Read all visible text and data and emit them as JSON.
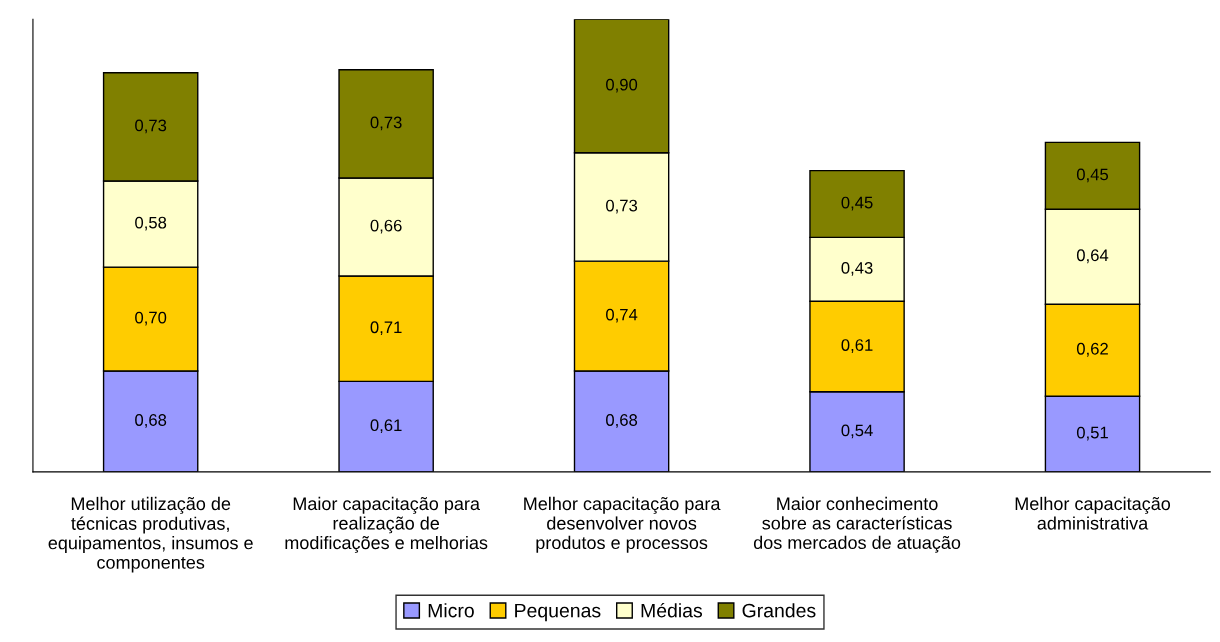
{
  "chart_data": {
    "type": "bar",
    "stacked": true,
    "categories": [
      "Melhor utilização de\ntécnicas produtivas,\nequipamentos, insumos e\ncomponentes",
      "Maior capacitação para\nrealização de\nmodificações e melhorias",
      "Melhor capacitação para\ndesenvolver novos\nprodutos e processos",
      "Maior conhecimento\nsobre as características\ndos mercados de atuação",
      "Melhor capacitação\nadministrativa"
    ],
    "series": [
      {
        "name": "Micro",
        "color": "#9999ff",
        "values": [
          0.68,
          0.61,
          0.68,
          0.54,
          0.51
        ],
        "value_labels": [
          "0,68",
          "0,61",
          "0,68",
          "0,54",
          "0,51"
        ]
      },
      {
        "name": "Pequenas",
        "color": "#ffcc00",
        "values": [
          0.7,
          0.71,
          0.74,
          0.61,
          0.62
        ],
        "value_labels": [
          "0,70",
          "0,71",
          "0,74",
          "0,61",
          "0,62"
        ]
      },
      {
        "name": "Médias",
        "color": "#ffffcc",
        "values": [
          0.58,
          0.66,
          0.73,
          0.43,
          0.64
        ],
        "value_labels": [
          "0,58",
          "0,66",
          "0,73",
          "0,43",
          "0,64"
        ]
      },
      {
        "name": "Grandes",
        "color": "#808000",
        "values": [
          0.73,
          0.73,
          0.9,
          0.45,
          0.45
        ],
        "value_labels": [
          "0,73",
          "0,73",
          "0,90",
          "0,45",
          "0,45"
        ]
      }
    ],
    "tick_labels": "x",
    "grid": false,
    "legend": "bottom"
  }
}
